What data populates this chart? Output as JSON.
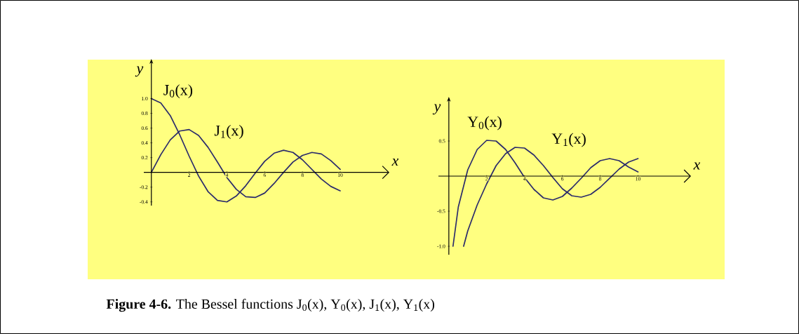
{
  "chart_data": [
    {
      "type": "line",
      "xlabel": "x",
      "ylabel": "y",
      "xlim": [
        -0.4,
        12.6
      ],
      "ylim": [
        -0.45,
        1.47
      ],
      "xticks": [
        2,
        4,
        6,
        8,
        10
      ],
      "yticks": [
        {
          "value": 1.0,
          "label": "1.0"
        },
        {
          "value": 0.8,
          "label": "0.8"
        },
        {
          "value": 0.6,
          "label": "0.6"
        },
        {
          "value": 0.4,
          "label": "0.4"
        },
        {
          "value": 0.2,
          "label": "0.2"
        },
        {
          "value": -0.2,
          "label": "-0.2"
        },
        {
          "value": -0.4,
          "label": "-0.4"
        }
      ],
      "x": [
        0,
        0.5,
        1,
        1.5,
        2,
        2.5,
        3,
        3.5,
        4,
        4.5,
        5,
        5.5,
        6,
        6.5,
        7,
        7.5,
        8,
        8.5,
        9,
        9.5,
        10
      ],
      "series": [
        {
          "name": "J$_{0}$(x)",
          "color": "#2b2b6b",
          "values": [
            1.0,
            0.94,
            0.77,
            0.51,
            0.22,
            -0.05,
            -0.26,
            -0.38,
            -0.4,
            -0.32,
            -0.18,
            -0.01,
            0.15,
            0.26,
            0.3,
            0.27,
            0.17,
            0.04,
            -0.09,
            -0.19,
            -0.25
          ]
        },
        {
          "name": "J$_{1}$(x)",
          "color": "#2b2b6b",
          "values": [
            0.0,
            0.24,
            0.44,
            0.56,
            0.58,
            0.5,
            0.34,
            0.14,
            -0.07,
            -0.23,
            -0.33,
            -0.34,
            -0.28,
            -0.15,
            0.0,
            0.14,
            0.23,
            0.27,
            0.25,
            0.16,
            0.04
          ]
        }
      ],
      "annotations": [
        "**Figure 4-6.** The Bessel functions J$_{0}$(x), Y$_{0}$(x), J$_{1}$(x), Y$_{1}$(x)"
      ]
    },
    {
      "type": "line",
      "xlabel": "x",
      "ylabel": "y",
      "xlim": [
        -0.55,
        12.8
      ],
      "ylim": [
        -1.12,
        1.06
      ],
      "xticks": [
        2,
        4,
        6,
        8,
        10
      ],
      "yticks": [
        {
          "value": 0.5,
          "label": "0.5"
        },
        {
          "value": -0.5,
          "label": "-0.5"
        },
        {
          "value": -1.0,
          "label": "-1.0"
        }
      ],
      "series": [
        {
          "name": "Y$_{0}$(x)",
          "color": "#2b2b6b",
          "x": [
            0.22,
            0.5,
            1,
            1.5,
            2,
            2.5,
            3,
            3.5,
            4,
            4.5,
            5,
            5.5,
            6,
            6.5,
            7,
            7.5,
            8,
            8.5,
            9,
            9.5,
            10
          ],
          "values": [
            -1.0,
            -0.44,
            0.09,
            0.38,
            0.51,
            0.5,
            0.38,
            0.19,
            -0.02,
            -0.19,
            -0.31,
            -0.34,
            -0.29,
            -0.17,
            -0.03,
            0.12,
            0.22,
            0.25,
            0.22,
            0.13,
            0.06
          ]
        },
        {
          "name": "Y$_{1}$(x)",
          "color": "#2b2b6b",
          "x": [
            0.78,
            1,
            1.5,
            2,
            2.5,
            3,
            3.5,
            4,
            4.5,
            5,
            5.5,
            6,
            6.5,
            7,
            7.5,
            8,
            8.5,
            9,
            9.5,
            10
          ],
          "values": [
            -1.0,
            -0.78,
            -0.41,
            -0.11,
            0.15,
            0.32,
            0.41,
            0.4,
            0.3,
            0.15,
            -0.02,
            -0.18,
            -0.28,
            -0.3,
            -0.26,
            -0.16,
            -0.03,
            0.1,
            0.2,
            0.25
          ]
        }
      ]
    }
  ]
}
